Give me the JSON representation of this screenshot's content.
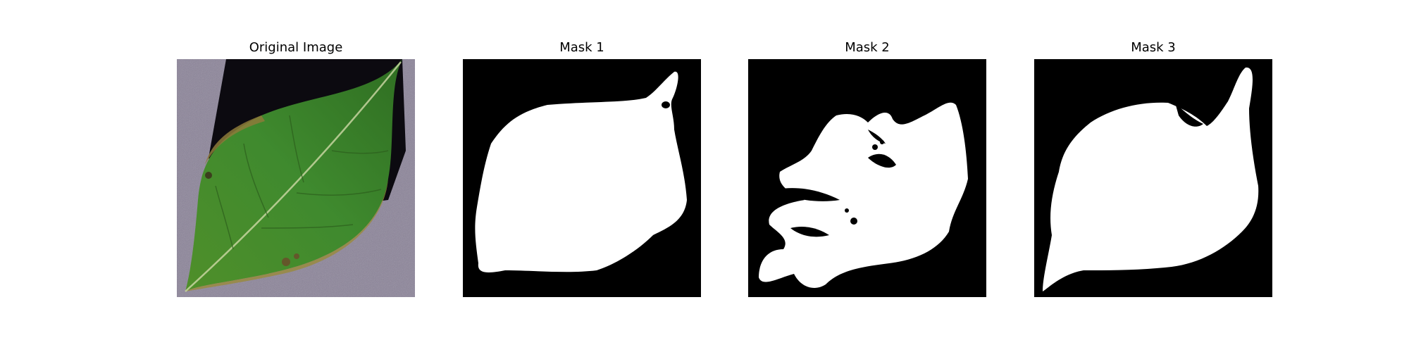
{
  "panels": [
    {
      "title": "Original Image"
    },
    {
      "title": "Mask 1"
    },
    {
      "title": "Mask 2"
    },
    {
      "title": "Mask 3"
    }
  ],
  "colors": {
    "background": "#ffffff",
    "mask_fg": "#ffffff",
    "mask_bg": "#000000",
    "leaf_green": "#3f8a2e",
    "backdrop_purple": "#8a8298"
  }
}
